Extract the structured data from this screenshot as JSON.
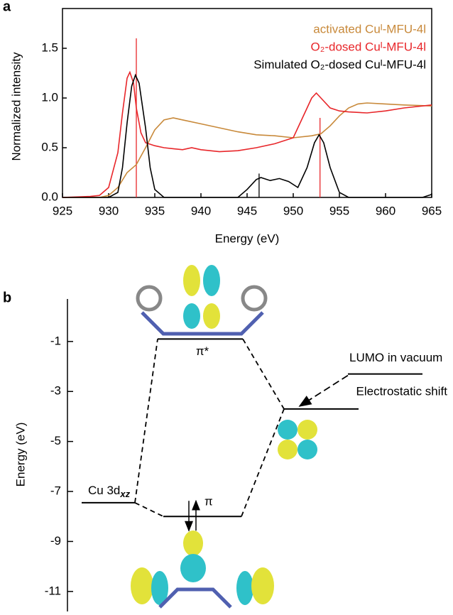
{
  "chart_data": [
    {
      "type": "line",
      "panel": "a",
      "xlabel": "Energy (eV)",
      "ylabel": "Normalized intensity",
      "xlim": [
        925,
        965
      ],
      "xticks": [
        925,
        930,
        935,
        940,
        945,
        950,
        955,
        960,
        965
      ],
      "ylim": [
        0,
        1.9
      ],
      "yticks": [
        {
          "value": 0,
          "label": "0.0"
        },
        0.5,
        {
          "value": 1,
          "label": "1.0"
        },
        1.5
      ],
      "series": [
        {
          "name": "activated Cuᴵ-MFU-4l",
          "color": "#c8893a",
          "x": [
            925,
            929,
            930,
            931,
            932,
            933,
            934,
            935,
            936,
            937,
            938,
            940,
            942,
            944,
            946,
            948,
            950,
            952,
            953,
            954,
            955,
            956,
            957,
            958,
            960,
            962,
            965
          ],
          "values": [
            0,
            0,
            0.02,
            0.1,
            0.25,
            0.33,
            0.5,
            0.68,
            0.78,
            0.8,
            0.78,
            0.74,
            0.7,
            0.66,
            0.63,
            0.62,
            0.6,
            0.62,
            0.64,
            0.72,
            0.82,
            0.9,
            0.94,
            0.95,
            0.94,
            0.93,
            0.92
          ]
        },
        {
          "name": "O₂-dosed Cuᴵ-MFU-4l",
          "color": "#e8262a",
          "x": [
            925,
            928,
            929,
            930,
            931,
            931.5,
            932,
            932.3,
            932.7,
            933,
            933.5,
            934,
            935,
            936,
            937,
            938,
            939,
            940,
            942,
            944,
            946,
            948,
            950,
            951,
            952,
            952.5,
            953,
            954,
            955,
            956,
            958,
            960,
            962,
            965
          ],
          "values": [
            0,
            0.01,
            0.02,
            0.1,
            0.45,
            0.85,
            1.2,
            1.26,
            1.15,
            0.9,
            0.65,
            0.55,
            0.52,
            0.5,
            0.49,
            0.48,
            0.5,
            0.48,
            0.46,
            0.47,
            0.5,
            0.54,
            0.6,
            0.8,
            1.0,
            1.05,
            1.0,
            0.9,
            0.87,
            0.86,
            0.85,
            0.87,
            0.9,
            0.93
          ]
        },
        {
          "name": "Simulated O₂-dosed Cuᴵ-MFU-4l",
          "color": "#000000",
          "x": [
            925,
            930,
            931,
            931.5,
            932,
            932.5,
            932.9,
            933.3,
            934,
            934.5,
            935,
            936,
            944,
            945,
            946,
            946.5,
            947.5,
            948.5,
            949.5,
            950.5,
            951.5,
            952.3,
            952.8,
            953.3,
            954,
            955,
            956,
            964,
            965
          ],
          "values": [
            0,
            0,
            0.05,
            0.3,
            0.75,
            1.12,
            1.23,
            1.15,
            0.7,
            0.3,
            0.08,
            0,
            0,
            0.08,
            0.18,
            0.2,
            0.17,
            0.19,
            0.16,
            0.1,
            0.3,
            0.55,
            0.63,
            0.55,
            0.3,
            0.05,
            0,
            0,
            0.03
          ]
        }
      ],
      "sticks": [
        {
          "x": 933,
          "value": 1.6,
          "color": "#e8262a"
        },
        {
          "x": 952.9,
          "value": 0.8,
          "color": "#e8262a"
        },
        {
          "x": 946.3,
          "value": 0.24,
          "color": "#000000"
        }
      ]
    },
    {
      "type": "energy-levels",
      "panel": "b",
      "ylabel": "Energy (eV)",
      "ylim": [
        -11.8,
        0.7
      ],
      "yticks": [
        -1,
        -3,
        -5,
        -7,
        -9,
        -11
      ],
      "levels": [
        {
          "label": "Cu 3d",
          "sub": "xz",
          "energy": -7.45
        },
        {
          "label": "π*",
          "energy": -0.9
        },
        {
          "label": "π",
          "energy": -8.0
        },
        {
          "label": "LUMO in vacuum",
          "energy": -2.3
        },
        {
          "energy": -3.7
        }
      ],
      "annotation": "Electrostatic shift"
    }
  ]
}
